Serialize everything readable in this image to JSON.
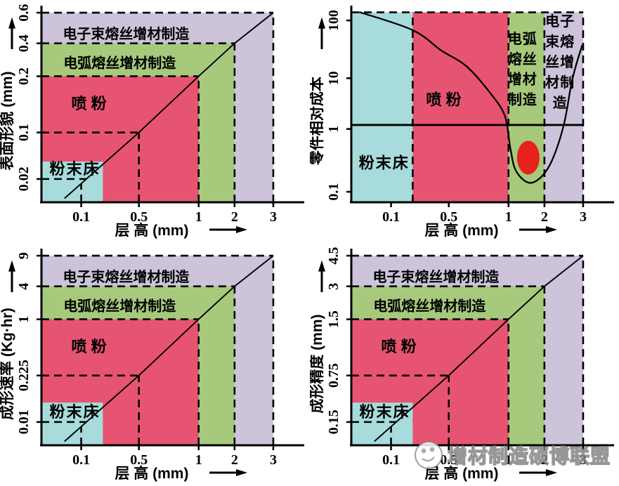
{
  "watermark": {
    "text": "增材制造硕博联盟"
  },
  "process_regions": {
    "powder_bed": {
      "label": "粉末床",
      "color": "#a8dbdb"
    },
    "blown_powder": {
      "label": "喷 粉",
      "color": "#e75471"
    },
    "wire_arc": {
      "label": "电弧熔丝增材制造",
      "color": "#a6c97c",
      "stacked_lines": [
        "电弧",
        "熔丝",
        "增材",
        "制造"
      ]
    },
    "ebeam_wire": {
      "label": "电子束熔丝增材制造",
      "color": "#cdc3db",
      "stacked_lines": [
        "电子",
        "束熔",
        "丝增",
        "材制",
        "造"
      ]
    }
  },
  "chart_data": [
    {
      "id": "surface-morphology",
      "type": "area",
      "layout": "nested",
      "xlabel": "层 高 (mm)",
      "ylabel": "表面形貌 (mm)",
      "x_ticks": [
        "0.1",
        "0.5",
        "1",
        "2",
        "3"
      ],
      "y_ticks": [
        "0.02",
        "0.1",
        "0.2",
        "0.4",
        "0.6"
      ],
      "diagonal": true,
      "regions": [
        {
          "key": "powder_bed",
          "x_max": 0.25,
          "y_max": 0.05
        },
        {
          "key": "blown_powder",
          "x_max": 1,
          "y_max": 0.2
        },
        {
          "key": "wire_arc",
          "x_max": 2,
          "y_max": 0.4
        },
        {
          "key": "ebeam_wire",
          "x_max": 3,
          "y_max": 0.6
        }
      ]
    },
    {
      "id": "relative-cost",
      "type": "line",
      "layout": "bands",
      "xlabel": "层 高 (mm)",
      "ylabel": "零件相对成本",
      "y_scale": "log",
      "x_ticks": [
        "0.1",
        "0.5",
        "1",
        "2",
        "3"
      ],
      "y_ticks": [
        "0.1",
        "1",
        "10",
        "100"
      ],
      "bands": [
        {
          "key": "powder_bed",
          "x_from": 0,
          "x_to": 0.25
        },
        {
          "key": "blown_powder",
          "x_from": 0.25,
          "x_to": 1
        },
        {
          "key": "wire_arc",
          "x_from": 1,
          "x_to": 2
        },
        {
          "key": "ebeam_wire",
          "x_from": 2,
          "x_to": 3
        }
      ],
      "reference_line_y": 1.2,
      "cost_curve": [
        [
          0.02,
          140
        ],
        [
          0.25,
          68
        ],
        [
          0.45,
          30
        ],
        [
          0.65,
          16
        ],
        [
          0.85,
          5
        ],
        [
          0.97,
          1.8
        ],
        [
          1.05,
          0.5
        ],
        [
          1.2,
          0.22
        ],
        [
          1.55,
          0.14
        ],
        [
          1.9,
          0.17
        ],
        [
          2.2,
          0.32
        ],
        [
          2.5,
          1.2
        ],
        [
          2.7,
          8
        ],
        [
          2.85,
          20
        ],
        [
          2.98,
          38
        ]
      ],
      "optimum_marker": {
        "shape": "ellipse",
        "x": 1.55,
        "y": 0.35,
        "color": "#e8211a"
      }
    },
    {
      "id": "deposition-rate",
      "type": "area",
      "layout": "nested",
      "xlabel": "层 高 (mm)",
      "ylabel": "成形速率 (Kg·hr)",
      "x_ticks": [
        "0.1",
        "0.5",
        "1",
        "2",
        "3"
      ],
      "y_ticks": [
        "0.01",
        "0.225",
        "1",
        "4",
        "9"
      ],
      "diagonal": true,
      "regions": [
        {
          "key": "powder_bed",
          "x_max": 0.25,
          "y_max": 0.1
        },
        {
          "key": "blown_powder",
          "x_max": 1,
          "y_max": 1
        },
        {
          "key": "wire_arc",
          "x_max": 2,
          "y_max": 4
        },
        {
          "key": "ebeam_wire",
          "x_max": 3,
          "y_max": 9
        }
      ]
    },
    {
      "id": "forming-accuracy",
      "type": "area",
      "layout": "nested",
      "xlabel": "层 高 (mm)",
      "ylabel": "成形精度 (mm)",
      "x_ticks": [
        "0.1",
        "0.5",
        "1",
        "2",
        "3"
      ],
      "y_ticks": [
        "0.15",
        "0.75",
        "1.5",
        "3",
        "4.5"
      ],
      "diagonal": true,
      "regions": [
        {
          "key": "powder_bed",
          "x_max": 0.25,
          "y_max": 0.4
        },
        {
          "key": "blown_powder",
          "x_max": 1,
          "y_max": 1.5
        },
        {
          "key": "wire_arc",
          "x_max": 2,
          "y_max": 3
        },
        {
          "key": "ebeam_wire",
          "x_max": 3,
          "y_max": 4.5
        }
      ]
    }
  ]
}
